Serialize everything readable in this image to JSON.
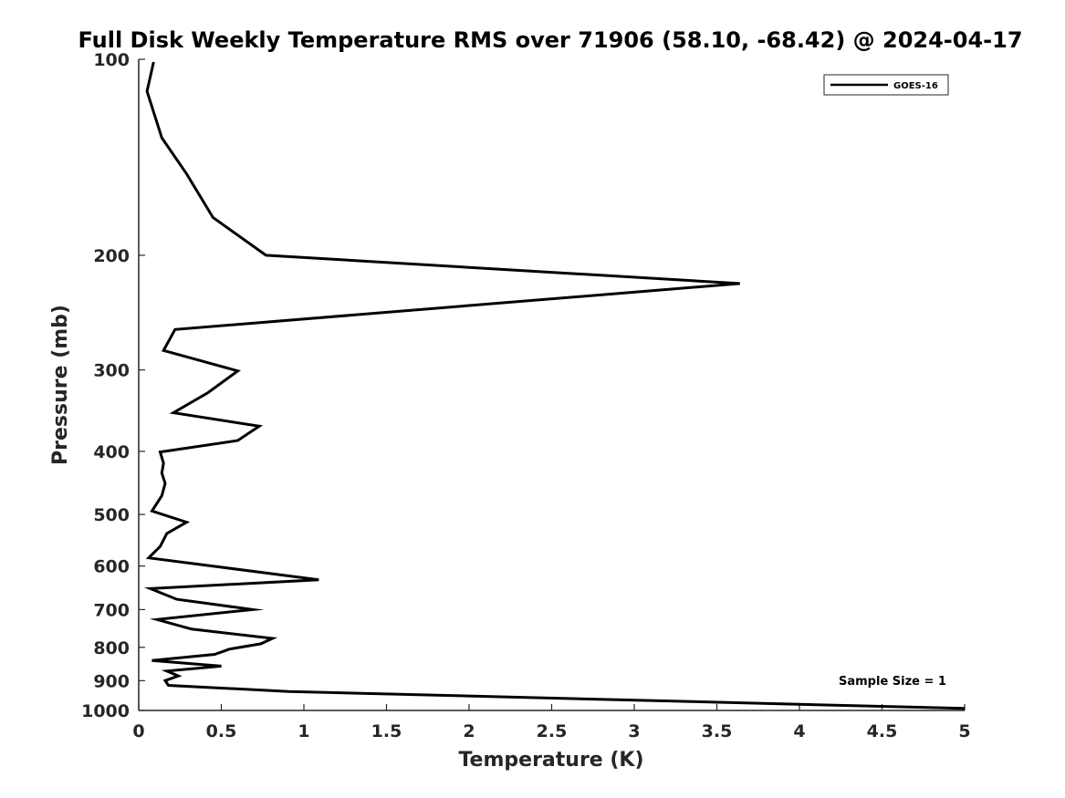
{
  "chart_data": {
    "type": "line",
    "title": "Full Disk Weekly Temperature RMS over 71906 (58.10, -68.42) @ 2024-04-17",
    "xlabel": "Temperature (K)",
    "ylabel": "Pressure (mb)",
    "xlim": [
      0,
      5
    ],
    "ylim": [
      1000,
      100
    ],
    "yscale": "log",
    "y_reversed": true,
    "grid": false,
    "legend_position": "top-right",
    "x_ticks": [
      0,
      0.5,
      1,
      1.5,
      2,
      2.5,
      3,
      3.5,
      4,
      4.5,
      5
    ],
    "x_tick_labels": [
      "0",
      "0.5",
      "1",
      "1.5",
      "2",
      "2.5",
      "3",
      "3.5",
      "4",
      "4.5",
      "5"
    ],
    "y_ticks": [
      100,
      200,
      300,
      400,
      500,
      600,
      700,
      800,
      900,
      1000
    ],
    "y_tick_labels": [
      "100",
      "200",
      "300",
      "400",
      "500",
      "600",
      "700",
      "800",
      "900",
      "1000"
    ],
    "series": [
      {
        "name": "GOES-16",
        "color": "#000000",
        "x": [
          0.09,
          0.05,
          0.14,
          0.29,
          0.45,
          0.77,
          3.64,
          0.22,
          0.15,
          0.6,
          0.42,
          0.21,
          0.73,
          0.6,
          0.13,
          0.15,
          0.14,
          0.16,
          0.14,
          0.08,
          0.29,
          0.17,
          0.13,
          0.06,
          1.09,
          0.07,
          0.23,
          0.69,
          0.11,
          0.32,
          0.81,
          0.74,
          0.55,
          0.46,
          0.08,
          0.5,
          0.17,
          0.24,
          0.16,
          0.18,
          0.91,
          5.0
        ],
        "y": [
          101,
          112,
          132,
          150,
          175,
          200,
          221,
          260,
          280,
          301,
          325,
          349,
          366,
          385,
          401,
          417,
          432,
          448,
          468,
          494,
          514,
          535,
          560,
          583,
          630,
          650,
          675,
          700,
          725,
          750,
          775,
          790,
          805,
          820,
          838,
          855,
          870,
          885,
          900,
          915,
          935,
          993
        ]
      }
    ],
    "annotation": "Sample Size = 1"
  }
}
